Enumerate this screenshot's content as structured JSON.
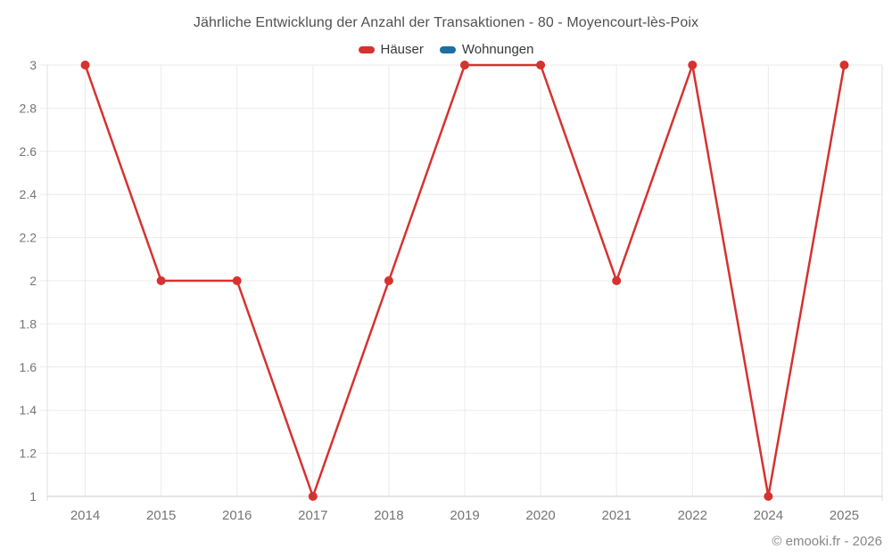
{
  "page": {
    "title": "Jährliche Entwicklung der Anzahl der Transaktionen - 80 - Moyencourt-lès-Poix",
    "copyright": "© emooki.fr - 2026"
  },
  "legend": {
    "items": [
      {
        "label": "Häuser",
        "color": "#d63230"
      },
      {
        "label": "Wohnungen",
        "color": "#1c6ea4"
      }
    ]
  },
  "chart_data": {
    "type": "line",
    "title": "Jährliche Entwicklung der Anzahl der Transaktionen - 80 - Moyencourt-lès-Poix",
    "categories": [
      "2014",
      "2015",
      "2016",
      "2017",
      "2018",
      "2019",
      "2020",
      "2021",
      "2022",
      "2024",
      "2025"
    ],
    "series": [
      {
        "name": "Häuser",
        "color": "#d63230",
        "values": [
          3,
          2,
          2,
          1,
          2,
          3,
          3,
          2,
          3,
          1,
          3
        ]
      },
      {
        "name": "Wohnungen",
        "color": "#1c6ea4",
        "values": []
      }
    ],
    "xlabel": "",
    "ylabel": "",
    "ylim": [
      1,
      3
    ],
    "y_ticks": [
      1,
      1.2,
      1.4,
      1.6,
      1.8,
      2,
      2.2,
      2.4,
      2.6,
      2.8,
      3
    ],
    "grid": true,
    "legend_position": "top",
    "colors": {
      "gridline": "#ebebeb",
      "plot_border": "#e0e0e0",
      "axis_line": "#c9c9c9",
      "tick_label": "#757575"
    }
  }
}
